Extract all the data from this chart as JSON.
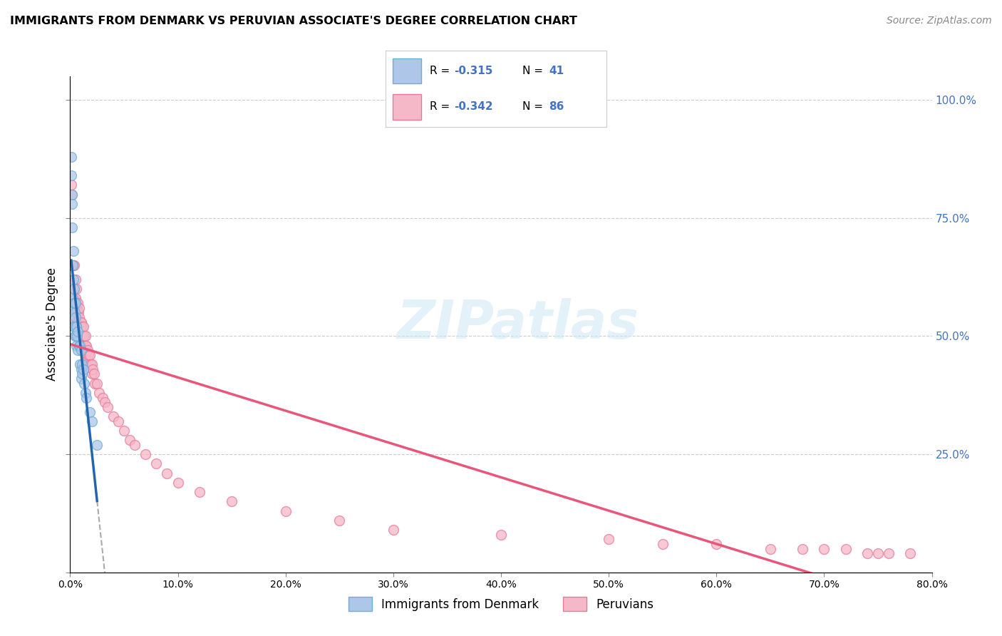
{
  "title": "IMMIGRANTS FROM DENMARK VS PERUVIAN ASSOCIATE'S DEGREE CORRELATION CHART",
  "source": "Source: ZipAtlas.com",
  "ylabel": "Associate's Degree",
  "denmark_color": "#aec6e8",
  "peru_color": "#f4b8c8",
  "denmark_edge_color": "#6baed6",
  "peru_edge_color": "#e8789a",
  "trendline_denmark_color": "#2166ac",
  "trendline_peru_color": "#e8567a",
  "background_color": "#ffffff",
  "grid_color": "#cccccc",
  "watermark_text": "ZIPatlas",
  "xmin": 0.0,
  "xmax": 80.0,
  "ymin": 0.0,
  "ymax": 1.05,
  "denmark_R": "-0.315",
  "denmark_N": "41",
  "peru_R": "-0.342",
  "peru_N": "86",
  "denmark_scatter_x": [
    0.1,
    0.1,
    0.15,
    0.2,
    0.2,
    0.25,
    0.25,
    0.3,
    0.3,
    0.3,
    0.35,
    0.35,
    0.4,
    0.4,
    0.4,
    0.45,
    0.45,
    0.5,
    0.5,
    0.5,
    0.55,
    0.6,
    0.6,
    0.65,
    0.7,
    0.7,
    0.8,
    0.9,
    0.9,
    1.0,
    1.0,
    1.0,
    1.1,
    1.1,
    1.2,
    1.3,
    1.4,
    1.5,
    1.8,
    2.0,
    2.5
  ],
  "denmark_scatter_y": [
    0.88,
    0.84,
    0.8,
    0.78,
    0.73,
    0.65,
    0.58,
    0.68,
    0.62,
    0.56,
    0.57,
    0.52,
    0.6,
    0.57,
    0.52,
    0.55,
    0.5,
    0.57,
    0.54,
    0.5,
    0.52,
    0.52,
    0.48,
    0.5,
    0.51,
    0.47,
    0.48,
    0.48,
    0.44,
    0.47,
    0.43,
    0.41,
    0.44,
    0.42,
    0.43,
    0.4,
    0.38,
    0.37,
    0.34,
    0.32,
    0.27
  ],
  "peru_scatter_x": [
    0.1,
    0.2,
    0.2,
    0.3,
    0.3,
    0.35,
    0.4,
    0.4,
    0.45,
    0.5,
    0.5,
    0.5,
    0.55,
    0.55,
    0.6,
    0.6,
    0.65,
    0.65,
    0.7,
    0.7,
    0.75,
    0.8,
    0.8,
    0.85,
    0.9,
    0.9,
    0.95,
    1.0,
    1.0,
    1.05,
    1.1,
    1.1,
    1.15,
    1.2,
    1.2,
    1.25,
    1.3,
    1.3,
    1.35,
    1.4,
    1.4,
    1.45,
    1.5,
    1.5,
    1.6,
    1.6,
    1.65,
    1.7,
    1.8,
    1.9,
    2.0,
    2.0,
    2.1,
    2.2,
    2.3,
    2.5,
    2.7,
    3.0,
    3.2,
    3.5,
    4.0,
    4.5,
    5.0,
    5.5,
    6.0,
    7.0,
    8.0,
    9.0,
    10.0,
    12.0,
    15.0,
    20.0,
    25.0,
    30.0,
    40.0,
    50.0,
    55.0,
    60.0,
    65.0,
    68.0,
    70.0,
    72.0,
    74.0,
    75.0,
    76.0,
    78.0
  ],
  "peru_scatter_y": [
    0.82,
    0.65,
    0.8,
    0.65,
    0.57,
    0.52,
    0.65,
    0.6,
    0.58,
    0.62,
    0.58,
    0.53,
    0.55,
    0.5,
    0.6,
    0.57,
    0.56,
    0.52,
    0.57,
    0.53,
    0.55,
    0.56,
    0.52,
    0.54,
    0.52,
    0.48,
    0.53,
    0.52,
    0.48,
    0.53,
    0.52,
    0.5,
    0.5,
    0.52,
    0.48,
    0.5,
    0.5,
    0.47,
    0.48,
    0.5,
    0.46,
    0.48,
    0.48,
    0.45,
    0.47,
    0.44,
    0.45,
    0.46,
    0.46,
    0.44,
    0.44,
    0.42,
    0.43,
    0.42,
    0.4,
    0.4,
    0.38,
    0.37,
    0.36,
    0.35,
    0.33,
    0.32,
    0.3,
    0.28,
    0.27,
    0.25,
    0.23,
    0.21,
    0.19,
    0.17,
    0.15,
    0.13,
    0.11,
    0.09,
    0.08,
    0.07,
    0.06,
    0.06,
    0.05,
    0.05,
    0.05,
    0.05,
    0.04,
    0.04,
    0.04,
    0.04
  ]
}
